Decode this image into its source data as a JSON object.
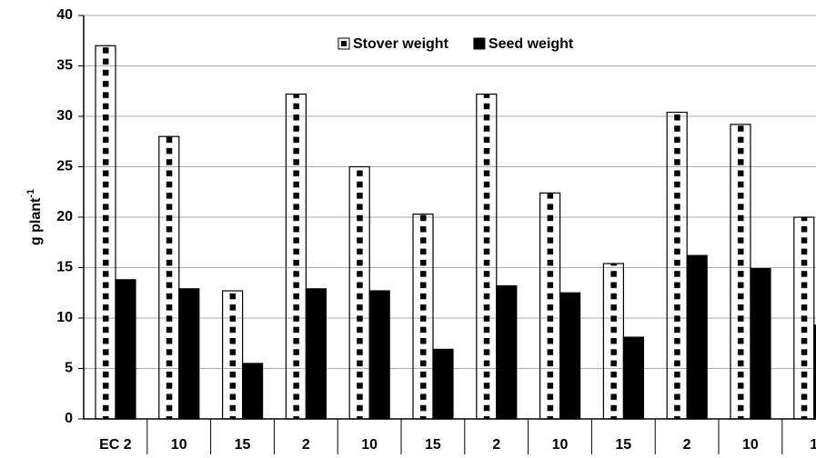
{
  "chart_data": {
    "type": "bar",
    "y_label": "g plant",
    "y_label_sup": "-1",
    "categories": [
      "EC 2",
      "10",
      "15",
      "2",
      "10",
      "15",
      "2",
      "10",
      "15",
      "2",
      "10",
      "1"
    ],
    "series": [
      {
        "name": "Stover weight",
        "color": "#000000",
        "pattern": "dotted",
        "values": [
          37,
          28,
          12.7,
          32.2,
          25,
          20.3,
          32.2,
          22.4,
          15.4,
          30.4,
          29.2,
          20
        ]
      },
      {
        "name": "Seed weight",
        "color": "#000000",
        "pattern": "solid",
        "values": [
          13.8,
          12.9,
          5.5,
          12.9,
          12.7,
          6.9,
          13.2,
          12.5,
          8.1,
          16.2,
          14.9,
          9.3
        ]
      }
    ],
    "ylim": [
      0,
      40
    ],
    "yticks": [
      0,
      5,
      10,
      15,
      20,
      25,
      30,
      35,
      40
    ],
    "grid": true,
    "legend": "top"
  }
}
